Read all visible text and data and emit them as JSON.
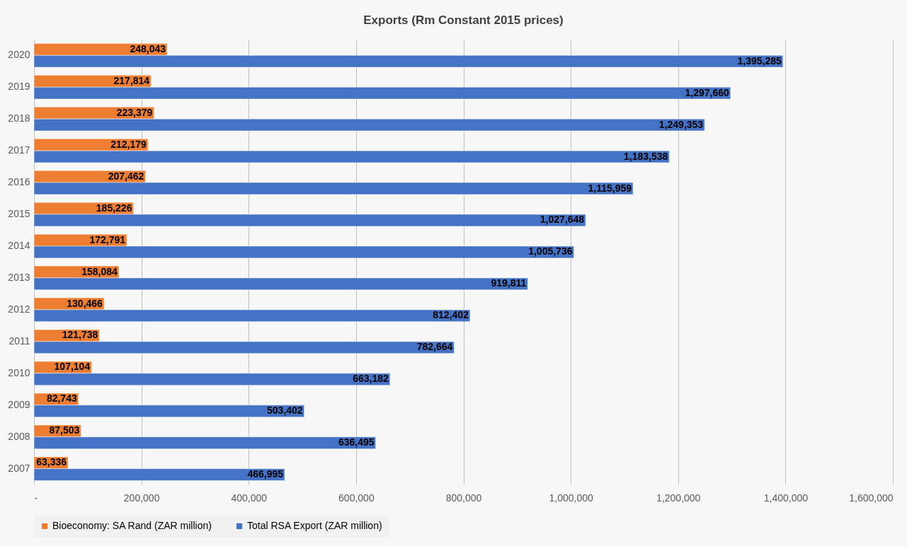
{
  "chart_data": {
    "type": "bar",
    "orientation": "horizontal",
    "title": "Exports (Rm Constant 2015 prices)",
    "categories": [
      "2020",
      "2019",
      "2018",
      "2017",
      "2016",
      "2015",
      "2014",
      "2013",
      "2012",
      "2011",
      "2010",
      "2009",
      "2008",
      "2007"
    ],
    "series": [
      {
        "name": "Bioeconomy: SA Rand (ZAR million)",
        "color": "#ed7d31",
        "values": [
          248043,
          217814,
          223379,
          212179,
          207462,
          185226,
          172791,
          158084,
          130466,
          121738,
          107104,
          82743,
          87503,
          63336
        ],
        "value_labels": [
          "248,043",
          "217,814",
          "223,379",
          "212,179",
          "207,462",
          "185,226",
          "172,791",
          "158,084",
          "130,466",
          "121,738",
          "107,104",
          "82,743",
          "87,503",
          "63,336"
        ]
      },
      {
        "name": "Total RSA Export (ZAR million)",
        "color": "#4472c4",
        "values": [
          1395285,
          1297660,
          1249353,
          1183538,
          1115959,
          1027648,
          1005736,
          919811,
          812402,
          782664,
          663182,
          503402,
          636495,
          466995
        ],
        "value_labels": [
          "1,395,285",
          "1,297,660",
          "1,249,353",
          "1,183,538",
          "1,115,959",
          "1,027,648",
          "1,005,736",
          "919,811",
          "812,402",
          "782,664",
          "663,182",
          "503,402",
          "636,495",
          "466,995"
        ]
      }
    ],
    "xlim": [
      0,
      1600000
    ],
    "xticks": [
      {
        "value": 0,
        "label": "-"
      },
      {
        "value": 200000,
        "label": "200,000"
      },
      {
        "value": 400000,
        "label": "400,000"
      },
      {
        "value": 600000,
        "label": "600,000"
      },
      {
        "value": 800000,
        "label": "800,000"
      },
      {
        "value": 1000000,
        "label": "1,000,000"
      },
      {
        "value": 1200000,
        "label": "1,200,000"
      },
      {
        "value": 1400000,
        "label": "1,400,000"
      },
      {
        "value": 1600000,
        "label": "1,600,000"
      }
    ],
    "grid": "x",
    "legend": "bottom"
  }
}
